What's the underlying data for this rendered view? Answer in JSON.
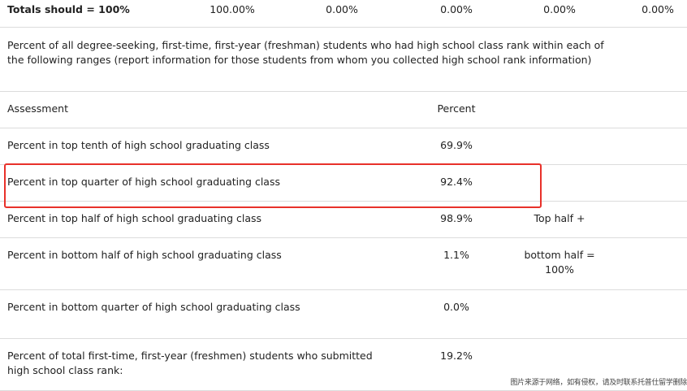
{
  "totals_row": {
    "label": "Totals should = 100%",
    "values": [
      "100.00%",
      "0.00%",
      "0.00%",
      "0.00%",
      "0.00%"
    ]
  },
  "section_description": "Percent of all degree-seeking, first-time, first-year (freshman) students who had high school class rank within each of the following ranges (report information for those students from whom you collected high school rank information)",
  "table": {
    "headers": {
      "assessment": "Assessment",
      "percent": "Percent"
    },
    "rows": [
      {
        "label": "Percent in top tenth of high school graduating class",
        "percent": "69.9%",
        "note": ""
      },
      {
        "label": "Percent in top quarter of high school graduating class",
        "percent": "92.4%",
        "note": ""
      },
      {
        "label": "Percent in top half of high school graduating class",
        "percent": "98.9%",
        "note": "Top half +"
      },
      {
        "label": "Percent in bottom half of high school graduating class",
        "percent": "1.1%",
        "note": "bottom half = 100%"
      },
      {
        "label": "Percent in bottom quarter of high school graduating class",
        "percent": "0.0%",
        "note": ""
      },
      {
        "label": "Percent of total first-time, first-year (freshmen) students who submitted high school class rank:",
        "percent": "19.2%",
        "note": ""
      }
    ]
  },
  "highlight_color": "#e8312a",
  "watermark": "图片来源于网络，如有侵权，请及时联系托普仕留学删除"
}
